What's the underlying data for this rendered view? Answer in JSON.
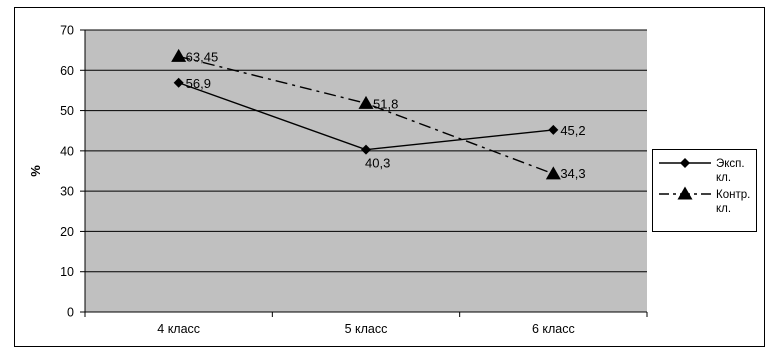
{
  "chart_data": {
    "type": "line",
    "title": "",
    "xlabel": "",
    "ylabel": "%",
    "ylim": [
      0,
      70
    ],
    "yticks": [
      0,
      10,
      20,
      30,
      40,
      50,
      60,
      70
    ],
    "grid": "horizontal",
    "legend_position": "right",
    "categories": [
      "4 класс",
      "5 класс",
      "6 класс"
    ],
    "series": [
      {
        "name": "Эксп. кл.",
        "name_lines": [
          "Эксп.",
          "кл."
        ],
        "values": [
          56.9,
          40.3,
          45.2
        ],
        "labels": [
          "56,9",
          "40,3",
          "45,2"
        ],
        "marker": "diamond",
        "line_style": "solid",
        "color": "#000000"
      },
      {
        "name": "Контр. кл.",
        "name_lines": [
          "Контр.",
          "кл."
        ],
        "values": [
          63.45,
          51.8,
          34.3
        ],
        "labels": [
          "63,45",
          "51,8",
          "34,3"
        ],
        "marker": "triangle",
        "line_style": "dash-dot",
        "color": "#000000"
      }
    ],
    "colors": {
      "plot_background": "#c0c0c0",
      "gridline": "#000000"
    }
  }
}
